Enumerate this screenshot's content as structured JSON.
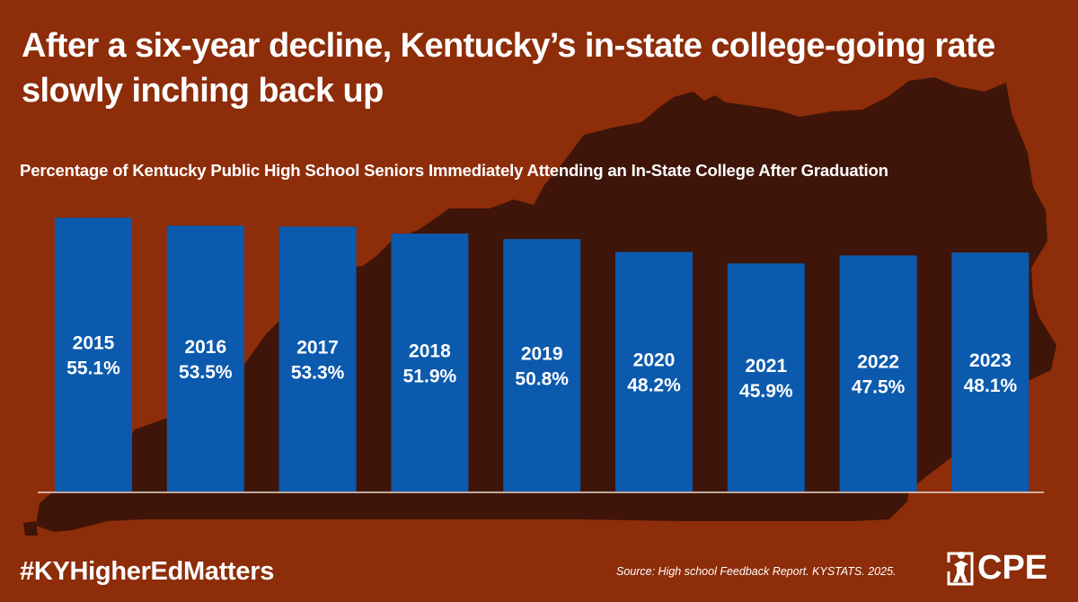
{
  "title": "After a six-year decline, Kentucky’s in-state college-going rate slowly inching back up",
  "subtitle": "Percentage of Kentucky Public High School Seniors Immediately Attending an In-State College After Graduation",
  "hashtag": "#KYHigherEdMatters",
  "source": "Source: High school Feedback Report. KYSTATS. 2025.",
  "logo": {
    "text": "CPE",
    "icon": "cpe-figure-icon"
  },
  "colors": {
    "background": "#8d2d0a",
    "map_silhouette": "#3e1508",
    "bar": "#0b5aad",
    "text": "#ffffff"
  },
  "background_graphic": "kentucky-map-silhouette",
  "chart_data": {
    "type": "bar",
    "title": "",
    "subtitle": "Percentage of Kentucky Public High School Seniors Immediately Attending an In-State College After Graduation",
    "categories": [
      "2015",
      "2016",
      "2017",
      "2018",
      "2019",
      "2020",
      "2021",
      "2022",
      "2023"
    ],
    "values": [
      55.1,
      53.5,
      53.3,
      51.9,
      50.8,
      48.2,
      45.9,
      47.5,
      48.1
    ],
    "data_labels": [
      "55.1%",
      "53.5%",
      "53.3%",
      "51.9%",
      "50.8%",
      "48.2%",
      "45.9%",
      "47.5%",
      "48.1%"
    ],
    "unit": "%",
    "xlabel": "",
    "ylabel": "",
    "ylim": [
      0,
      57.5
    ],
    "grid": false,
    "legend": "none",
    "label_position": "inside-bar-center"
  }
}
